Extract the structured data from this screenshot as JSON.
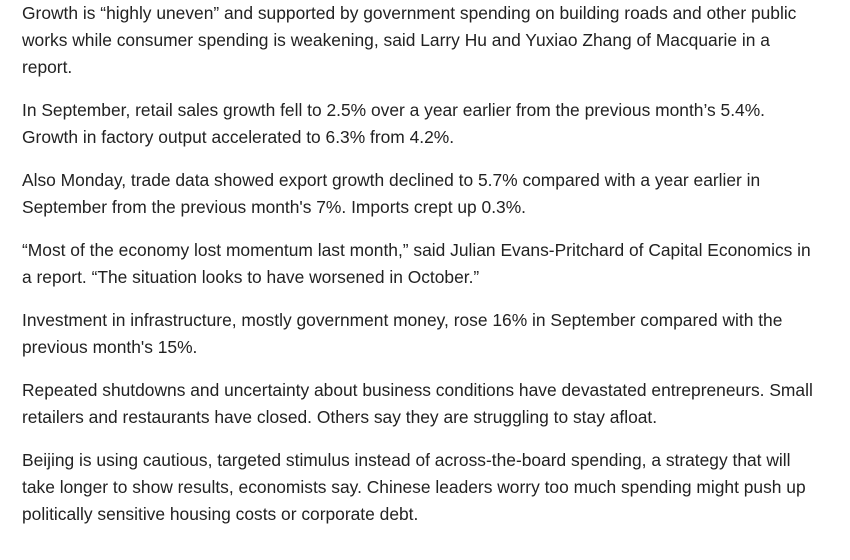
{
  "article": {
    "paragraphs": [
      "Growth is “highly uneven” and supported by government spending on building roads and other public works while consumer spending is weakening, said Larry Hu and Yuxiao Zhang of Macquarie in a report.",
      "In September, retail sales growth fell to 2.5% over a year earlier from the previous month’s 5.4%. Growth in factory output accelerated to 6.3% from 4.2%.",
      "Also Monday, trade data showed export growth declined to 5.7% compared with a year earlier in September from the previous month's 7%. Imports crept up 0.3%.",
      "“Most of the economy lost momentum last month,” said Julian Evans-Pritchard of Capital Economics in a report. “The situation looks to have worsened in October.”",
      "Investment in infrastructure, mostly government money, rose 16% in September compared with the previous month's 15%.",
      "Repeated shutdowns and uncertainty about business conditions have devastated entrepreneurs. Small retailers and restaurants have closed. Others say they are struggling to stay afloat.",
      "Beijing is using cautious, targeted stimulus instead of across-the-board spending, a strategy that will take longer to show results, economists say. Chinese leaders worry too much spending might push up politically sensitive housing costs or corporate debt."
    ]
  }
}
